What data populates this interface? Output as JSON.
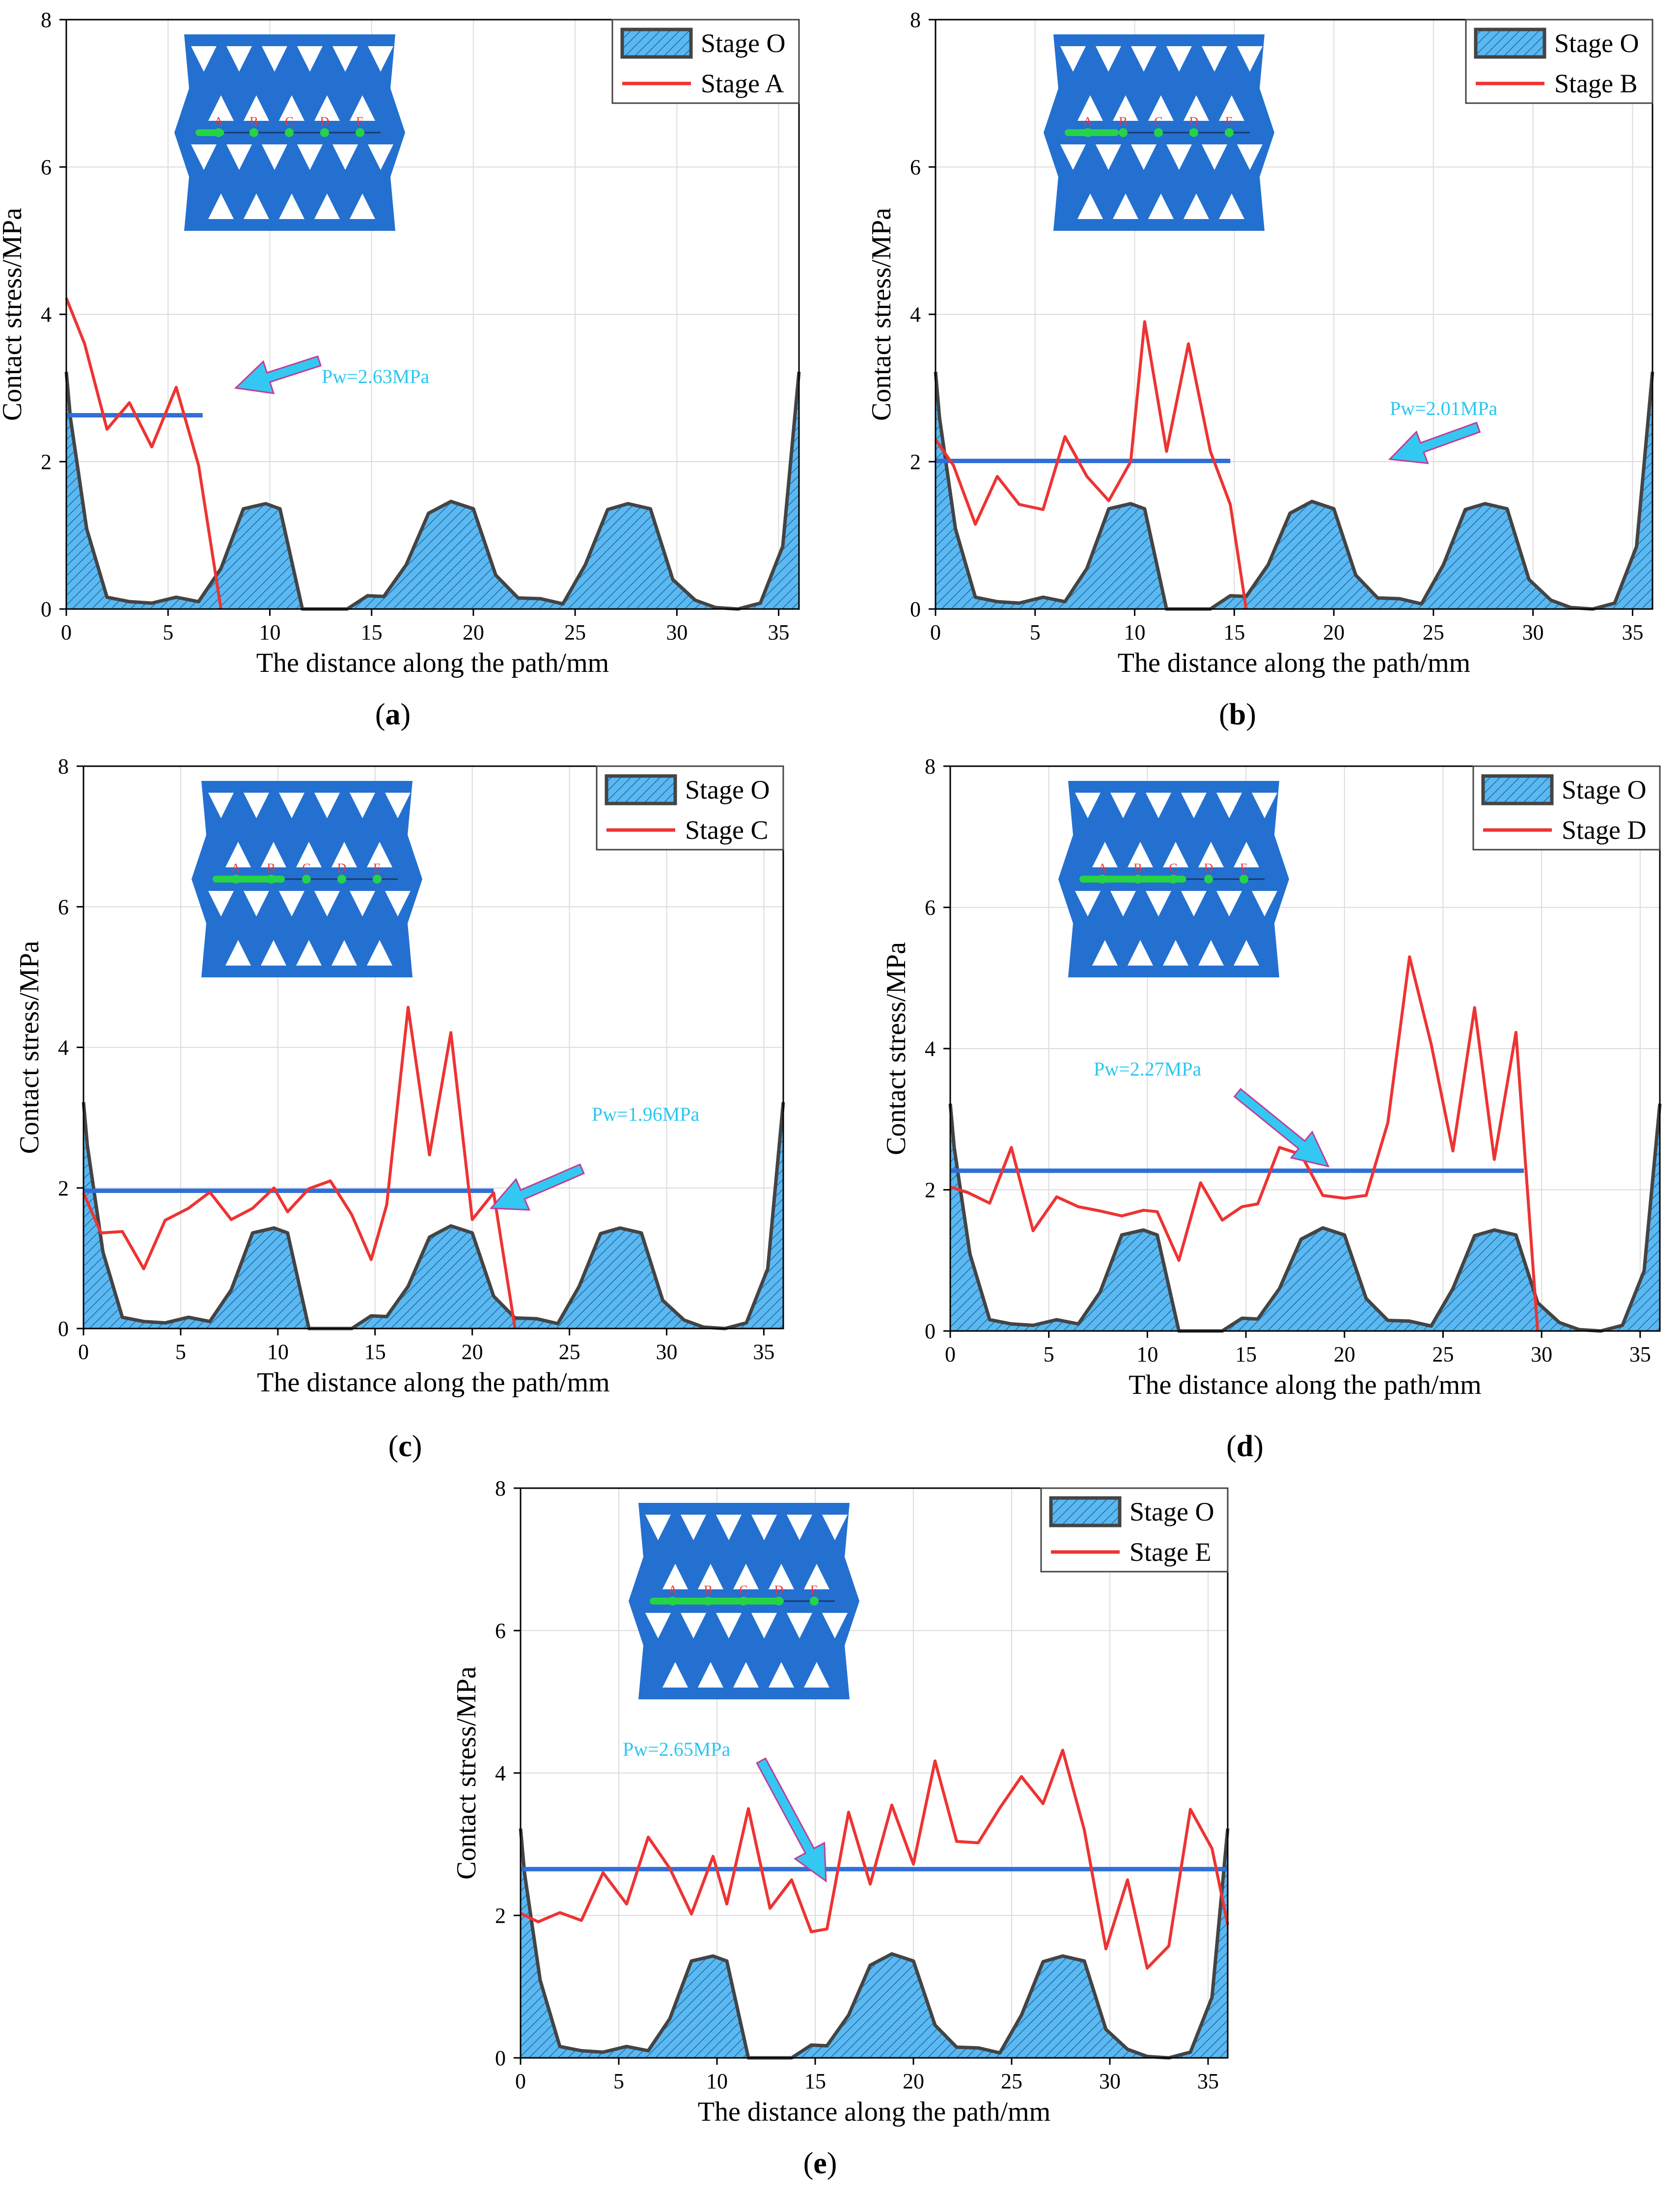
{
  "chart_data": [
    {
      "type": "area+line",
      "panel_label": "a",
      "xlabel": "The distance along the path/mm",
      "ylabel": "Contact stress/MPa",
      "xlim": [
        0,
        36
      ],
      "ylim": [
        0,
        8
      ],
      "xticks": [
        0,
        5,
        10,
        15,
        20,
        25,
        30,
        35
      ],
      "yticks": [
        0,
        2,
        4,
        6,
        8
      ],
      "legend": [
        "Stage O",
        "Stage A"
      ],
      "pw_label": "Pw=2.63MPa",
      "pw_value": 2.63,
      "pw_range": [
        0,
        6.7
      ],
      "inset_labels": [
        "A",
        "B",
        "C",
        "D",
        "E"
      ],
      "series_red": {
        "name": "Stage A",
        "x": [
          0,
          0.9,
          2.0,
          3.1,
          4.2,
          5.4,
          6.5,
          7.6
        ],
        "y": [
          4.22,
          3.6,
          2.44,
          2.8,
          2.2,
          3.01,
          1.95,
          0
        ]
      }
    },
    {
      "type": "area+line",
      "panel_label": "b",
      "xlabel": "The distance along the path/mm",
      "ylabel": "Contact stress/MPa",
      "xlim": [
        0,
        36
      ],
      "ylim": [
        0,
        8
      ],
      "xticks": [
        0,
        5,
        10,
        15,
        20,
        25,
        30,
        35
      ],
      "yticks": [
        0,
        2,
        4,
        6,
        8
      ],
      "legend": [
        "Stage O",
        "Stage B"
      ],
      "pw_label": "Pw=2.01MPa",
      "pw_value": 2.01,
      "pw_range": [
        0,
        14.8
      ],
      "inset_labels": [
        "A",
        "B",
        "C",
        "D",
        "E"
      ],
      "series_red": {
        "name": "Stage B",
        "x": [
          0,
          0.9,
          2.0,
          3.1,
          4.2,
          5.4,
          6.5,
          7.6,
          8.7,
          9.8,
          10.5,
          11.6,
          12.7,
          13.8,
          14.8,
          15.6
        ],
        "y": [
          2.3,
          1.95,
          1.15,
          1.8,
          1.42,
          1.35,
          2.34,
          1.8,
          1.47,
          2.0,
          3.9,
          2.14,
          3.6,
          2.14,
          1.42,
          0
        ]
      }
    },
    {
      "type": "area+line",
      "panel_label": "c",
      "xlabel": "The distance along the path/mm",
      "ylabel": "Contact stress/MPa",
      "xlim": [
        0,
        36
      ],
      "ylim": [
        0,
        8
      ],
      "xticks": [
        0,
        5,
        10,
        15,
        20,
        25,
        30,
        35
      ],
      "yticks": [
        0,
        2,
        4,
        6,
        8
      ],
      "legend": [
        "Stage O",
        "Stage C"
      ],
      "pw_label": "Pw=1.96MPa",
      "pw_value": 1.96,
      "pw_range": [
        0,
        21.1
      ],
      "inset_labels": [
        "A",
        "B",
        "C",
        "D",
        "E"
      ],
      "series_red": {
        "name": "Stage C",
        "x": [
          0,
          0.9,
          2.0,
          3.1,
          4.2,
          5.4,
          6.5,
          7.6,
          8.7,
          9.8,
          10.5,
          11.6,
          12.7,
          13.8,
          14.8,
          15.6,
          16.7,
          17.8,
          18.9,
          20.0,
          21.1,
          22.2
        ],
        "y": [
          1.93,
          1.36,
          1.38,
          0.85,
          1.54,
          1.71,
          1.94,
          1.55,
          1.71,
          2.0,
          1.66,
          1.99,
          2.1,
          1.62,
          0.98,
          1.76,
          4.57,
          2.47,
          4.21,
          1.55,
          1.93,
          0
        ]
      }
    },
    {
      "type": "area+line",
      "panel_label": "d",
      "xlabel": "The distance along the path/mm",
      "ylabel": "Contact stress/MPa",
      "xlim": [
        0,
        36
      ],
      "ylim": [
        0,
        8
      ],
      "xticks": [
        0,
        5,
        10,
        15,
        20,
        25,
        30,
        35
      ],
      "yticks": [
        0,
        2,
        4,
        6,
        8
      ],
      "legend": [
        "Stage O",
        "Stage D"
      ],
      "pw_label": "Pw=2.27MPa",
      "pw_value": 2.27,
      "pw_range": [
        0,
        29.1
      ],
      "inset_labels": [
        "A",
        "B",
        "C",
        "D",
        "E"
      ],
      "series_red": {
        "name": "Stage D",
        "x": [
          0,
          0.9,
          2.0,
          3.1,
          4.2,
          5.4,
          6.5,
          7.6,
          8.7,
          9.8,
          10.5,
          11.6,
          12.7,
          13.8,
          14.8,
          15.6,
          16.7,
          17.8,
          18.9,
          20.0,
          21.1,
          22.2,
          23.3,
          24.4,
          25.5,
          26.6,
          27.6,
          28.7,
          29.8
        ],
        "y": [
          2.04,
          1.96,
          1.81,
          2.6,
          1.42,
          1.9,
          1.76,
          1.7,
          1.63,
          1.71,
          1.69,
          1.0,
          2.1,
          1.57,
          1.76,
          1.8,
          2.6,
          2.5,
          1.92,
          1.88,
          1.92,
          2.95,
          5.3,
          4.06,
          2.55,
          4.58,
          2.43,
          4.23,
          0
        ]
      }
    },
    {
      "type": "area+line",
      "panel_label": "e",
      "xlabel": "The distance along the path/mm",
      "ylabel": "Contact stress/MPa",
      "xlim": [
        0,
        36
      ],
      "ylim": [
        0,
        8
      ],
      "xticks": [
        0,
        5,
        10,
        15,
        20,
        25,
        30,
        35
      ],
      "yticks": [
        0,
        2,
        4,
        6,
        8
      ],
      "legend": [
        "Stage O",
        "Stage E"
      ],
      "pw_label": "Pw=2.65MPa",
      "pw_value": 2.65,
      "pw_range": [
        0,
        36
      ],
      "inset_labels": [
        "A",
        "B",
        "C",
        "D",
        "E"
      ],
      "series_red": {
        "name": "Stage E",
        "x": [
          0,
          0.9,
          2.0,
          3.1,
          4.2,
          5.4,
          6.5,
          7.6,
          8.7,
          9.8,
          10.5,
          11.6,
          12.7,
          13.8,
          14.8,
          15.6,
          16.7,
          17.8,
          18.9,
          20.0,
          21.1,
          22.2,
          23.3,
          24.4,
          25.5,
          26.6,
          27.6,
          28.7,
          29.8,
          30.9,
          31.9,
          33.0,
          34.1,
          35.2,
          36.0
        ],
        "y": [
          2.03,
          1.91,
          2.04,
          1.93,
          2.6,
          2.16,
          3.1,
          2.66,
          2.02,
          2.83,
          2.16,
          3.5,
          2.1,
          2.5,
          1.77,
          1.81,
          3.45,
          2.44,
          3.55,
          2.72,
          4.17,
          3.04,
          3.02,
          3.51,
          3.95,
          3.57,
          4.32,
          3.2,
          1.53,
          2.5,
          1.26,
          1.57,
          3.49,
          2.94,
          1.87
        ]
      }
    }
  ],
  "stage_o": {
    "name": "Stage O",
    "x": [
      0,
      0.2,
      1.0,
      2.0,
      3.1,
      4.2,
      5.4,
      6.5,
      7.6,
      8.7,
      9.8,
      10.5,
      11.6,
      12.7,
      13.8,
      14.8,
      15.6,
      16.7,
      17.8,
      18.9,
      20.0,
      21.1,
      22.2,
      23.3,
      24.4,
      25.5,
      26.6,
      27.6,
      28.7,
      29.8,
      30.9,
      31.9,
      33.0,
      34.1,
      35.2,
      36.0
    ],
    "y": [
      3.22,
      2.6,
      1.09,
      0.16,
      0.1,
      0.08,
      0.16,
      0.1,
      0.55,
      1.36,
      1.43,
      1.36,
      0.0,
      0.0,
      0.0,
      0.18,
      0.17,
      0.6,
      1.3,
      1.46,
      1.36,
      0.46,
      0.15,
      0.14,
      0.07,
      0.6,
      1.35,
      1.43,
      1.36,
      0.4,
      0.12,
      0.02,
      0.0,
      0.08,
      0.85,
      3.22
    ]
  },
  "captions": [
    "(a)",
    "(b)",
    "(c)",
    "(d)",
    "(e)"
  ],
  "colors": {
    "red": "#ee3333",
    "blue_line": "#2f6fd8",
    "fill": "#5bb8f0",
    "fill_edge": "#444444",
    "hatch": "#1c6aa8",
    "arrow": "#33c8f2",
    "arrow_edge": "#c03c9a",
    "pw_text": "#2bc6f0",
    "inset_fill": "#2370d0",
    "inset_path": "#27d346",
    "grid": "#dcdcdc"
  }
}
